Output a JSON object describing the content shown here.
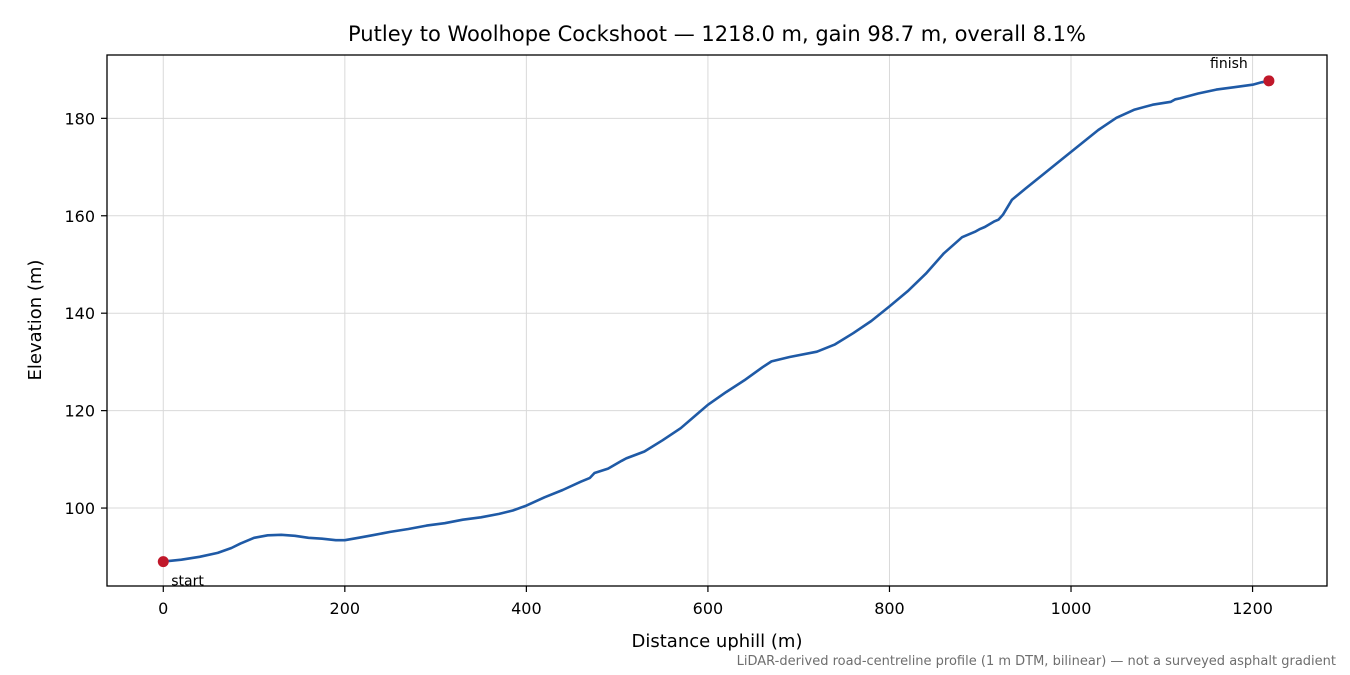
{
  "chart_data": {
    "type": "line",
    "title": "Putley to Woolhope Cockshoot — 1218.0 m, gain 98.7 m, overall 8.1%",
    "xlabel": "Distance uphill (m)",
    "ylabel": "Elevation (m)",
    "xlim": [
      -62,
      1282
    ],
    "ylim": [
      84,
      193
    ],
    "xticks": [
      0,
      200,
      400,
      600,
      800,
      1000,
      1200
    ],
    "yticks": [
      100,
      120,
      140,
      160,
      180
    ],
    "grid": true,
    "line_color": "#1f5aa6",
    "marker_color": "#c0182a",
    "series": [
      {
        "x": [
          0,
          20,
          40,
          60,
          75,
          85,
          100,
          115,
          130,
          145,
          160,
          175,
          190,
          200,
          215,
          230,
          250,
          270,
          290,
          310,
          330,
          350,
          370,
          385,
          400,
          420,
          440,
          460,
          470,
          475,
          490,
          505,
          510,
          530,
          550,
          570,
          590,
          600,
          620,
          640,
          660,
          670,
          690,
          720,
          740,
          760,
          780,
          800,
          820,
          840,
          860,
          880,
          895,
          900,
          905,
          915,
          920,
          925,
          935,
          950,
          970,
          990,
          1010,
          1030,
          1050,
          1070,
          1090,
          1110,
          1115,
          1120,
          1140,
          1160,
          1180,
          1200,
          1210,
          1218
        ],
        "y": [
          89.0,
          89.4,
          90.0,
          90.8,
          91.8,
          92.7,
          93.9,
          94.4,
          94.5,
          94.3,
          93.9,
          93.7,
          93.4,
          93.4,
          93.9,
          94.4,
          95.1,
          95.7,
          96.4,
          96.9,
          97.6,
          98.1,
          98.8,
          99.5,
          100.5,
          102.2,
          103.7,
          105.4,
          106.2,
          107.2,
          108.1,
          109.7,
          110.2,
          111.6,
          113.9,
          116.4,
          119.6,
          121.2,
          123.8,
          126.2,
          128.9,
          130.1,
          131.0,
          132.1,
          133.6,
          135.9,
          138.4,
          141.4,
          144.5,
          148.1,
          152.3,
          155.6,
          156.8,
          157.3,
          157.7,
          158.8,
          159.2,
          160.2,
          163.3,
          165.6,
          168.6,
          171.6,
          174.6,
          177.6,
          180.1,
          181.8,
          182.8,
          183.4,
          183.9,
          184.1,
          185.1,
          185.9,
          186.4,
          186.9,
          187.4,
          187.7
        ]
      }
    ],
    "annotations": [
      {
        "text": "start",
        "x": 0,
        "y": 89.0
      },
      {
        "text": "finish",
        "x": 1218,
        "y": 187.7
      }
    ],
    "footnote": "LiDAR-derived road-centreline profile (1 m DTM, bilinear) — not a surveyed asphalt gradient"
  }
}
